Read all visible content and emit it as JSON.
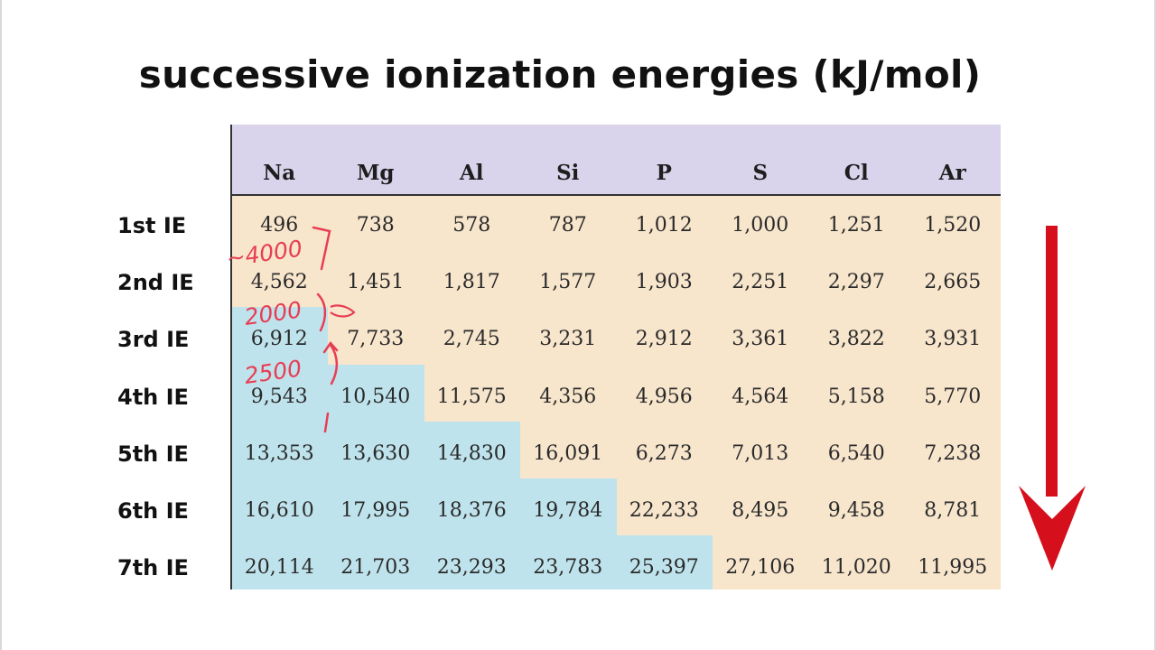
{
  "page": {
    "title": "successive ionization energies (kJ/mol)"
  },
  "colors": {
    "header_bg": "#d9d4ec",
    "core_bg": "#f7e5cc",
    "valence_bg": "#bfe3ec",
    "annotation": "#e83e54",
    "arrow": "#d60f1c"
  },
  "chart_data": {
    "type": "table",
    "title": "successive ionization energies (kJ/mol)",
    "columns": [
      "Na",
      "Mg",
      "Al",
      "Si",
      "P",
      "S",
      "Cl",
      "Ar"
    ],
    "rows": [
      {
        "label": "1st IE",
        "values": [
          "496",
          "738",
          "578",
          "787",
          "1,012",
          "1,000",
          "1,251",
          "1,520"
        ]
      },
      {
        "label": "2nd IE",
        "values": [
          "4,562",
          "1,451",
          "1,817",
          "1,577",
          "1,903",
          "2,251",
          "2,297",
          "2,665"
        ]
      },
      {
        "label": "3rd IE",
        "values": [
          "6,912",
          "7,733",
          "2,745",
          "3,231",
          "2,912",
          "3,361",
          "3,822",
          "3,931"
        ]
      },
      {
        "label": "4th IE",
        "values": [
          "9,543",
          "10,540",
          "11,575",
          "4,356",
          "4,956",
          "4,564",
          "5,158",
          "5,770"
        ]
      },
      {
        "label": "5th IE",
        "values": [
          "13,353",
          "13,630",
          "14,830",
          "16,091",
          "6,273",
          "7,013",
          "6,540",
          "7,238"
        ]
      },
      {
        "label": "6th IE",
        "values": [
          "16,610",
          "17,995",
          "18,376",
          "19,784",
          "22,233",
          "8,495",
          "9,458",
          "8,781"
        ]
      },
      {
        "label": "7th IE",
        "values": [
          "20,114",
          "21,703",
          "23,293",
          "23,783",
          "25,397",
          "27,106",
          "11,020",
          "11,995"
        ]
      }
    ],
    "shaded_from_row": [
      2,
      3,
      4,
      5,
      6,
      7,
      8,
      8
    ]
  },
  "annotations": {
    "notes": [
      "~4000",
      "2000",
      "2500"
    ]
  }
}
